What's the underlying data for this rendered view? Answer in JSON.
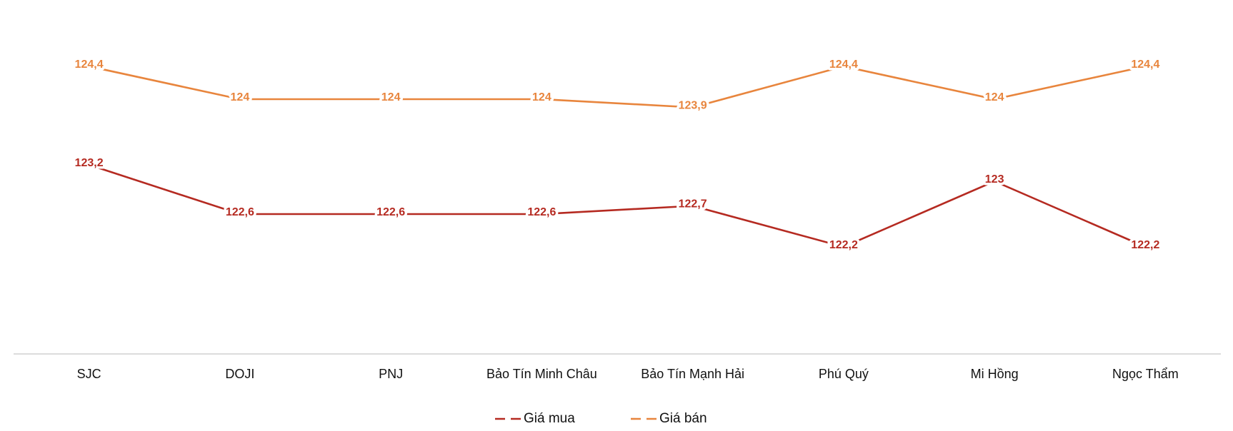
{
  "chart_data": {
    "type": "line",
    "categories": [
      "SJC",
      "DOJI",
      "PNJ",
      "Bảo Tín Minh Châu",
      "Bảo Tín Mạnh Hải",
      "Phú Quý",
      "Mi Hồng",
      "Ngọc Thẩm"
    ],
    "series": [
      {
        "name": "Giá mua",
        "color": "#b52a21",
        "values": [
          123.2,
          122.6,
          122.6,
          122.6,
          122.7,
          122.2,
          123,
          122.2
        ],
        "value_labels": [
          "123,2",
          "122,6",
          "122,6",
          "122,6",
          "122,7",
          "122,2",
          "123",
          "122,2"
        ]
      },
      {
        "name": "Giá bán",
        "color": "#e8853d",
        "values": [
          124.4,
          124,
          124,
          124,
          123.9,
          124.4,
          124,
          124.4
        ],
        "value_labels": [
          "124,4",
          "124",
          "124",
          "124",
          "123,9",
          "124,4",
          "124",
          "124,4"
        ]
      }
    ],
    "ylim": [
      121,
      125
    ],
    "legend": "bottom"
  }
}
